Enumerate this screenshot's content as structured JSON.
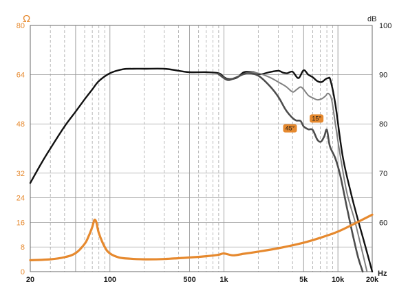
{
  "chart_data": {
    "type": "line",
    "x_scale": "log",
    "xlim": [
      20,
      20000
    ],
    "x_ticks": [
      {
        "value": 20,
        "label": "20"
      },
      {
        "value": 100,
        "label": "100"
      },
      {
        "value": 500,
        "label": "500"
      },
      {
        "value": 1000,
        "label": "1k"
      },
      {
        "value": 5000,
        "label": "5k"
      },
      {
        "value": 10000,
        "label": "10k"
      },
      {
        "value": 20000,
        "label": "20k"
      }
    ],
    "x_unit": "Hz",
    "y_left": {
      "unit": "Ω",
      "lim": [
        0,
        80
      ],
      "ticks": [
        0,
        8,
        16,
        24,
        32,
        48,
        64,
        80
      ],
      "color": "#e6892e"
    },
    "y_right": {
      "unit": "dB",
      "lim": [
        50,
        100
      ],
      "ticks": [
        60,
        70,
        80,
        90,
        100
      ],
      "color": "#1a1a1a"
    },
    "grid": true,
    "series": [
      {
        "name": "",
        "axis": "right",
        "color": "#111111",
        "x": [
          20,
          25,
          30,
          40,
          50,
          60,
          70,
          80,
          100,
          130,
          160,
          200,
          300,
          400,
          500,
          700,
          900,
          1000,
          1100,
          1300,
          1500,
          1800,
          2100,
          2500,
          3000,
          3300,
          3600,
          4000,
          4500,
          5000,
          5500,
          6000,
          6600,
          7200,
          7800,
          8200,
          8600,
          9500,
          11000,
          13000,
          15000,
          17000,
          20000
        ],
        "y": [
          68,
          72,
          75,
          79.5,
          82.5,
          85,
          87,
          88.7,
          90.3,
          91.1,
          91.2,
          91.2,
          91.2,
          90.8,
          90.5,
          90.5,
          90.3,
          89.5,
          89.1,
          89.4,
          90.5,
          90.5,
          90.1,
          90.5,
          90.8,
          90.4,
          90.3,
          90.6,
          89.3,
          90.9,
          90.0,
          89.5,
          88.7,
          88.5,
          89.1,
          89.3,
          88.9,
          84.0,
          73.5,
          66.0,
          60.5,
          56.0,
          50.0
        ]
      },
      {
        "name": "15°",
        "axis": "right",
        "color": "#808080",
        "x": [
          900,
          1000,
          1100,
          1300,
          1600,
          2000,
          2500,
          3000,
          3500,
          4000,
          4300,
          4700,
          5000,
          5500,
          6000,
          6600,
          7200,
          7800,
          8200,
          8800,
          9500,
          10500,
          12000,
          14000,
          16000,
          18000
        ],
        "y": [
          90.2,
          89.4,
          89.0,
          89.5,
          90.4,
          90.3,
          89.5,
          88.5,
          87.6,
          86.5,
          86.9,
          87.5,
          87.0,
          85.8,
          85.3,
          84.9,
          85.1,
          85.7,
          86.2,
          85.0,
          80.0,
          73.5,
          66.0,
          60.5,
          55.0,
          50.0
        ]
      },
      {
        "name": "45°",
        "axis": "right",
        "color": "#4d4d4d",
        "x": [
          900,
          1000,
          1100,
          1300,
          1600,
          2000,
          2500,
          3000,
          3500,
          4000,
          4300,
          4700,
          5000,
          5500,
          6000,
          6600,
          7100,
          7600,
          8000,
          8500,
          9500,
          10500,
          12000,
          13500,
          15000,
          16500
        ],
        "y": [
          90.1,
          89.3,
          88.9,
          89.5,
          90.3,
          89.8,
          87.8,
          85.5,
          82.8,
          81.2,
          80.7,
          80.6,
          79.5,
          78.9,
          78.8,
          76.8,
          76.4,
          77.5,
          78.8,
          75.5,
          73.0,
          69.5,
          63.0,
          57.5,
          53.0,
          50.0
        ]
      },
      {
        "name": "",
        "axis": "left",
        "color": "#e6892e",
        "x": [
          20,
          30,
          40,
          50,
          60,
          65,
          70,
          73,
          76,
          80,
          90,
          100,
          120,
          150,
          200,
          300,
          500,
          700,
          900,
          1000,
          1200,
          1500,
          2000,
          3000,
          5000,
          7000,
          10000,
          14000,
          20000
        ],
        "y": [
          3.7,
          4.0,
          4.7,
          6.0,
          9.0,
          11.5,
          14.5,
          16.8,
          16.0,
          12.5,
          8.0,
          5.9,
          4.6,
          4.2,
          4.0,
          4.1,
          4.6,
          5.0,
          5.5,
          5.9,
          5.3,
          5.8,
          6.5,
          7.6,
          9.4,
          11.0,
          13.0,
          15.6,
          18.5
        ]
      }
    ]
  }
}
